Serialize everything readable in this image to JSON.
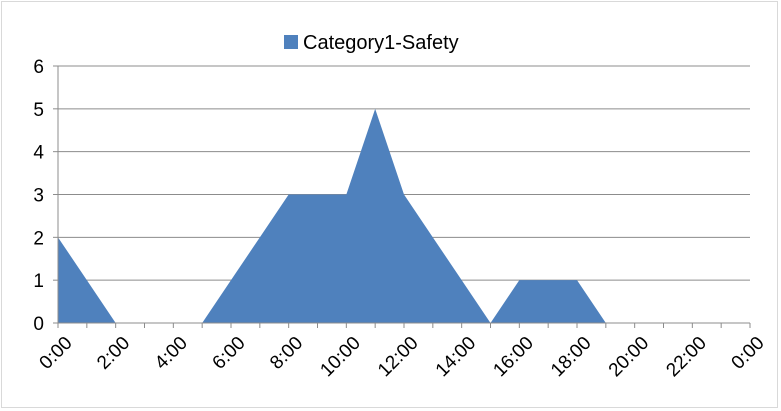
{
  "chart_data": {
    "type": "area",
    "title": "",
    "xlabel": "",
    "ylabel": "",
    "ylim": [
      0,
      6
    ],
    "yticks": [
      0,
      1,
      2,
      3,
      4,
      5,
      6
    ],
    "x_tick_labels": [
      "0:00",
      "2:00",
      "4:00",
      "6:00",
      "8:00",
      "10:00",
      "12:00",
      "14:00",
      "16:00",
      "18:00",
      "20:00",
      "22:00",
      "0:00"
    ],
    "grid": true,
    "legend_position": "top",
    "series": [
      {
        "name": "Category1-Safety",
        "color": "#4f81bd",
        "values": [
          2,
          1,
          0,
          0,
          0,
          0,
          1,
          2,
          3,
          3,
          3,
          5,
          3,
          2,
          1,
          0,
          1,
          1,
          1,
          0,
          0,
          0,
          0,
          0,
          0
        ]
      }
    ]
  }
}
